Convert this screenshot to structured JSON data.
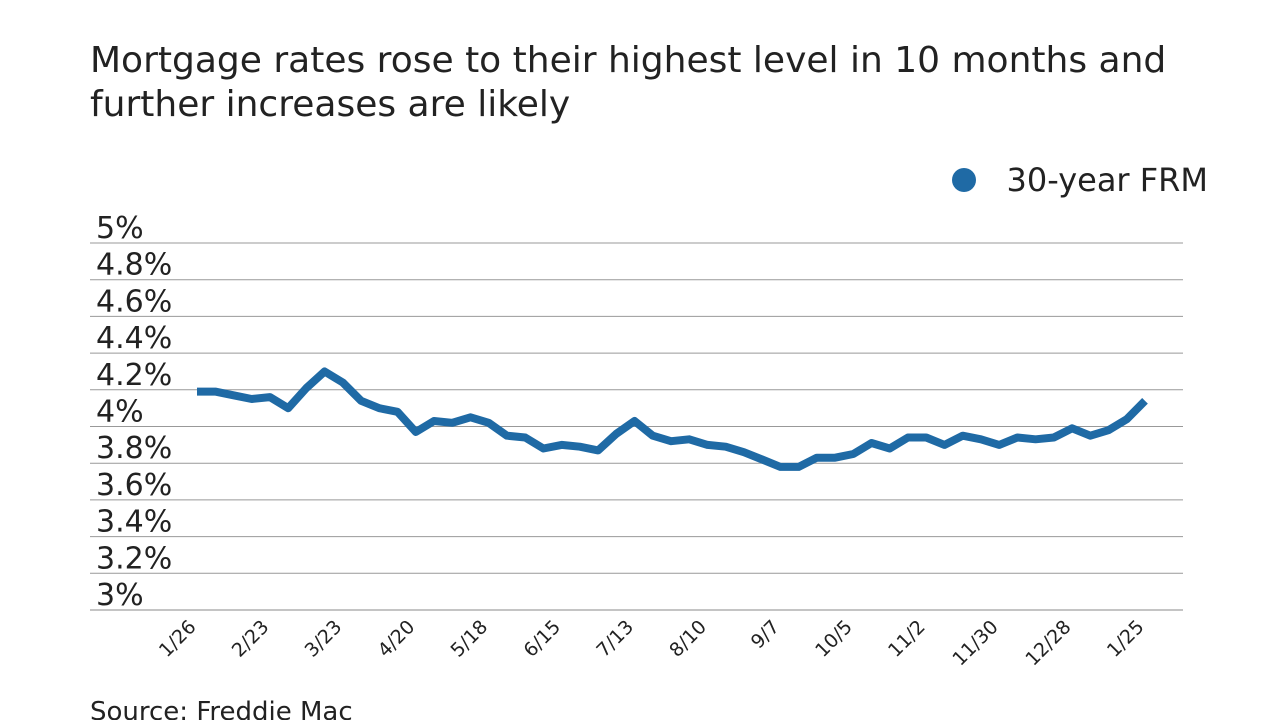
{
  "chart_data": {
    "type": "line",
    "subtitle": "Mortgage rates rose to their highest level in 10 months and further increases are likely",
    "source": "Source: Freddie Mac",
    "categories": [
      "1/26",
      null,
      null,
      null,
      "2/23",
      null,
      null,
      null,
      "3/23",
      null,
      null,
      null,
      "4/20",
      null,
      null,
      null,
      "5/18",
      null,
      null,
      null,
      "6/15",
      null,
      null,
      null,
      "7/13",
      null,
      null,
      null,
      "8/10",
      null,
      null,
      null,
      "9/7",
      null,
      null,
      null,
      "10/5",
      null,
      null,
      null,
      "11/2",
      null,
      null,
      null,
      "11/30",
      null,
      null,
      null,
      "12/28",
      null,
      null,
      null,
      "1/25"
    ],
    "series": [
      {
        "name": "30-year FRM",
        "color": "#1f6aa5",
        "values": [
          4.19,
          4.19,
          4.17,
          4.15,
          4.16,
          4.1,
          4.21,
          4.3,
          4.24,
          4.14,
          4.1,
          4.08,
          3.97,
          4.03,
          4.02,
          4.05,
          4.02,
          3.95,
          3.94,
          3.88,
          3.9,
          3.89,
          3.87,
          3.96,
          4.03,
          3.95,
          3.92,
          3.93,
          3.9,
          3.89,
          3.86,
          3.82,
          3.78,
          3.78,
          3.83,
          3.83,
          3.85,
          3.91,
          3.88,
          3.94,
          3.94,
          3.9,
          3.95,
          3.93,
          3.9,
          3.94,
          3.93,
          3.94,
          3.99,
          3.95,
          3.98,
          4.04,
          4.14
        ]
      }
    ],
    "ylim": [
      3,
      5
    ],
    "yticks": [
      {
        "value": 3,
        "label": "3%"
      },
      {
        "value": 3.2,
        "label": "3.2%"
      },
      {
        "value": 3.4,
        "label": "3.4%"
      },
      {
        "value": 3.6,
        "label": "3.6%"
      },
      {
        "value": 3.8,
        "label": "3.8%"
      },
      {
        "value": 4,
        "label": "4%"
      },
      {
        "value": 4.2,
        "label": "4.2%"
      },
      {
        "value": 4.4,
        "label": "4.4%"
      },
      {
        "value": 4.6,
        "label": "4.6%"
      },
      {
        "value": 4.8,
        "label": "4.8%"
      },
      {
        "value": 5,
        "label": "5%"
      }
    ],
    "grid": true,
    "legend": "top-right"
  }
}
